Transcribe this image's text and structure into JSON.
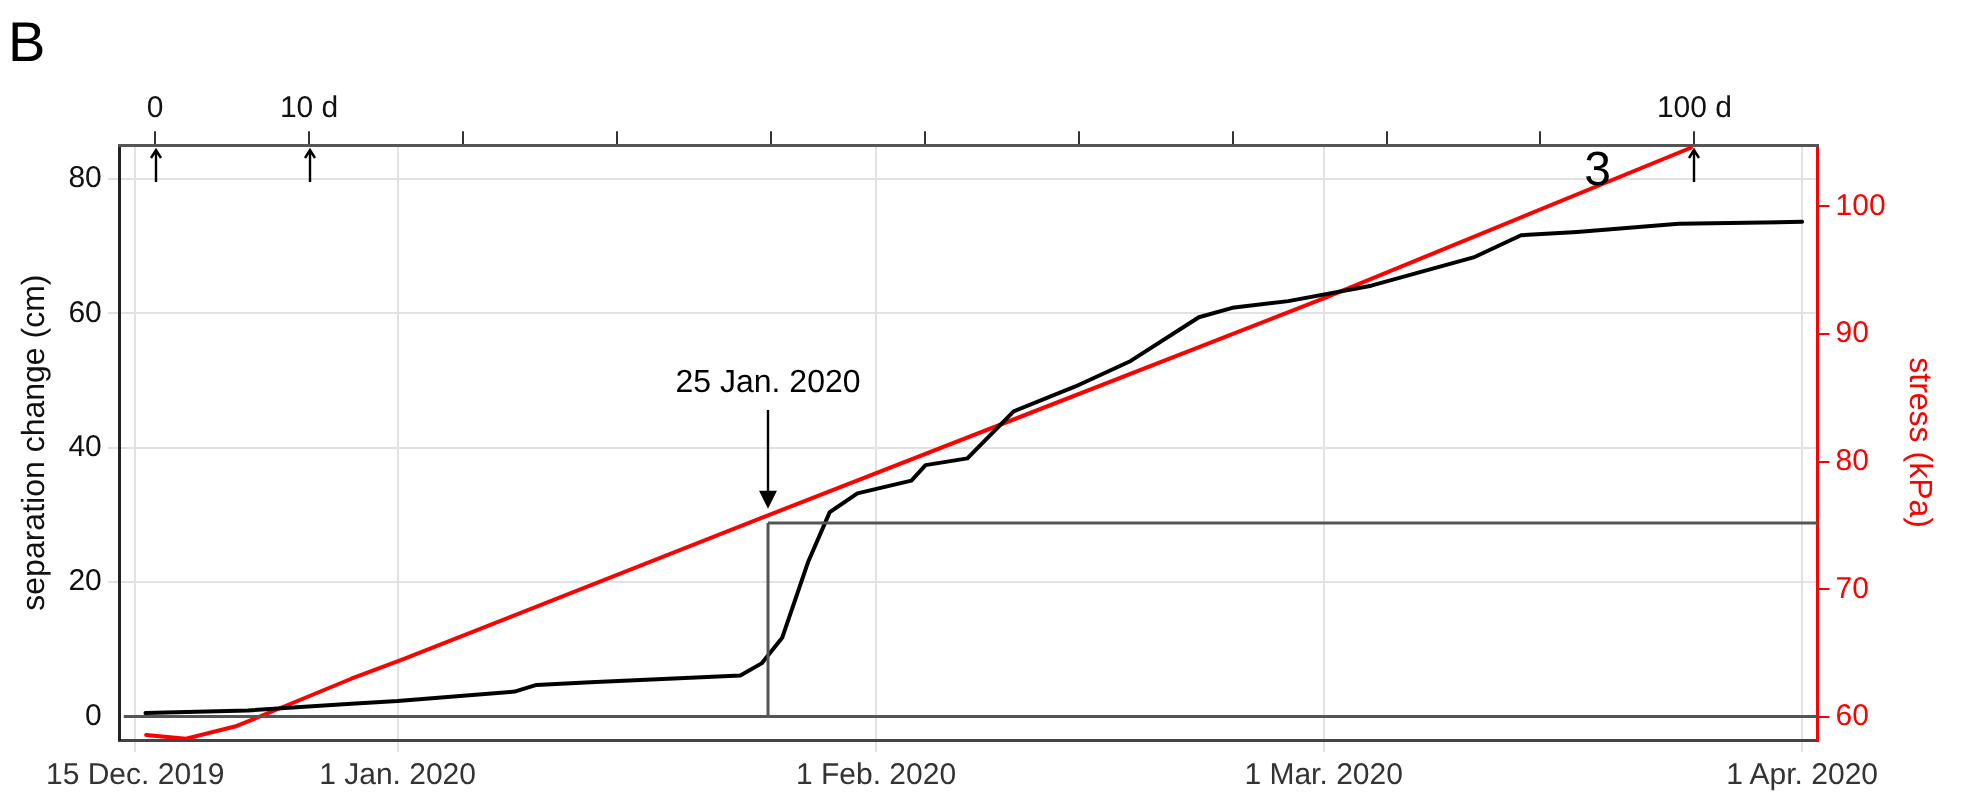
{
  "chart_data": {
    "type": "line",
    "title": "B",
    "xlabel": null,
    "ylabel": "separation change (cm)",
    "y2label": "stress (kPa)",
    "xlim": [
      "2019-12-14",
      "2020-04-02"
    ],
    "xticks": [
      {
        "value": "2019-12-15",
        "label": "15 Dec. 2019"
      },
      {
        "value": "2020-01-01",
        "label": "1 Jan. 2020"
      },
      {
        "value": "2020-02-01",
        "label": "1 Feb. 2020"
      },
      {
        "value": "2020-03-01",
        "label": "1 Mar. 2020"
      },
      {
        "value": "2020-04-01",
        "label": "1 Apr. 2020"
      }
    ],
    "x2lim": [
      -2.3,
      108
    ],
    "x2ticks": [
      0,
      {
        "value": 10,
        "label": "10 d"
      },
      {
        "value": 20,
        "label": null
      },
      {
        "value": 30,
        "label": null
      },
      {
        "value": 40,
        "label": null
      },
      {
        "value": 50,
        "label": null
      },
      {
        "value": 60,
        "label": null
      },
      {
        "value": 70,
        "label": null
      },
      {
        "value": 80,
        "label": null
      },
      {
        "value": 90,
        "label": null
      },
      {
        "value": 100,
        "label": "100 d"
      }
    ],
    "ylim": [
      -3.5,
      85
    ],
    "yticks": [
      0,
      20,
      40,
      60,
      80
    ],
    "y2lim": [
      58.2,
      104.8
    ],
    "y2ticks": [
      60,
      70,
      80,
      90,
      100
    ],
    "grid": true,
    "legend": false,
    "marker": "none",
    "line_style": "solid",
    "series": [
      {
        "color": "#000000",
        "x": [
          "2019-12-15T16:00",
          "2019-12-22T07:00",
          "2019-12-29",
          "2020-01-01",
          "2020-01-08T14:00",
          "2020-01-10",
          "2020-01-13T12:00",
          "2020-01-23T05:00",
          "2020-01-24T14:00",
          "2020-01-25T22:00",
          "2020-01-27T14:00",
          "2020-01-29",
          "2020-01-30T19:00",
          "2020-02-03T07:00",
          "2020-02-04T05:00",
          "2020-02-06T22:00",
          "2020-02-09T22:00",
          "2020-02-13T22:00",
          "2020-02-17T12:00",
          "2020-02-21T22:00",
          "2020-02-24T02:00",
          "2020-02-27T17:00",
          "2020-03-04T02:00",
          "2020-03-10T17:00",
          "2020-03-13T19:00",
          "2020-03-17T10:00",
          "2020-03-24",
          "2020-04-01"
        ],
        "values": [
          0.5,
          0.9,
          1.9,
          2.3,
          3.7,
          4.7,
          5.1,
          6.1,
          7.9,
          11.7,
          22.9,
          30.4,
          33.2,
          35.1,
          37.4,
          38.4,
          45.4,
          49.1,
          52.9,
          59.4,
          60.8,
          61.8,
          64.1,
          68.3,
          71.6,
          72.1,
          73.3,
          73.6
        ]
      },
      {
        "color": "#ff0000",
        "axis": "y2",
        "x": [
          "2019-12-15T17:00",
          "2019-12-18T07:00",
          "2019-12-21T14:00",
          "2019-12-25",
          "2019-12-29",
          "2020-01-01T07:00",
          "2020-01-25",
          "2020-03-01",
          "2020-03-24T19:00"
        ],
        "values": [
          58.6,
          58.3,
          59.3,
          61.0,
          63.0,
          64.5,
          75.8,
          92.8,
          104.6
        ]
      }
    ],
    "ref_lines": [
      {
        "axis": "x",
        "value": "2020-01-25",
        "color": "#555555"
      },
      {
        "axis": "y",
        "value": 28.8,
        "color": "#555555"
      },
      {
        "axis": "y",
        "value": 0,
        "color": "#555555"
      }
    ],
    "annotations": [
      "25 Jan. 2020",
      "3"
    ]
  }
}
